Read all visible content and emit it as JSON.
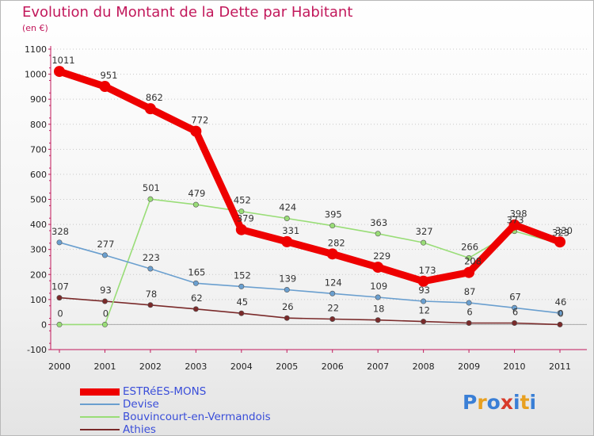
{
  "title": "Evolution du Montant de la Dette par Habitant",
  "subtitle": "(en €)",
  "logo": {
    "text": "Proxiti",
    "colors": [
      "#3a7fd6",
      "#e8a020",
      "#3a7fd6",
      "#d83a2a",
      "#3a7fd6",
      "#e8a020",
      "#3a7fd6"
    ]
  },
  "chart_data": {
    "type": "line",
    "x": [
      "2000",
      "2001",
      "2002",
      "2003",
      "2004",
      "2005",
      "2006",
      "2007",
      "2008",
      "2009",
      "2010",
      "2011"
    ],
    "ylim": [
      -100,
      1100
    ],
    "yticks": [
      "-100",
      "0",
      "100",
      "200",
      "300",
      "400",
      "500",
      "600",
      "700",
      "800",
      "900",
      "1000",
      "1100"
    ],
    "grid": "horizontal-dotted",
    "legend_placement": "bottom-left",
    "series": [
      {
        "name": "ESTRéES-MONS",
        "color": "#ee0000",
        "values": [
          1011,
          951,
          862,
          772,
          379,
          331,
          282,
          229,
          173,
          208,
          398,
          330
        ],
        "labels": [
          "1011",
          "951",
          "862",
          "772",
          "379",
          "331",
          "282",
          "229",
          "173",
          "208",
          "398",
          "330"
        ]
      },
      {
        "name": "Devise",
        "color": "#6a9fcf",
        "values": [
          328,
          277,
          223,
          165,
          152,
          139,
          124,
          109,
          93,
          87,
          67,
          46
        ],
        "labels": [
          "328",
          "277",
          "223",
          "165",
          "152",
          "139",
          "124",
          "109",
          "93",
          "87",
          "67",
          "46"
        ]
      },
      {
        "name": "Bouvincourt-en-Vermandois",
        "color": "#99dd77",
        "values": [
          0,
          0,
          501,
          479,
          452,
          424,
          395,
          363,
          327,
          266,
          373,
          323
        ],
        "labels": [
          "0",
          "0",
          "501",
          "479",
          "452",
          "424",
          "395",
          "363",
          "327",
          "266",
          "373",
          "323"
        ]
      },
      {
        "name": "Athies",
        "color": "#7a2a2a",
        "values": [
          107,
          93,
          78,
          62,
          45,
          26,
          22,
          18,
          12,
          6,
          6,
          0
        ],
        "labels": [
          "107",
          "93",
          "78",
          "62",
          "45",
          "26",
          "22",
          "18",
          "12",
          "6",
          "6",
          "0"
        ]
      }
    ]
  }
}
